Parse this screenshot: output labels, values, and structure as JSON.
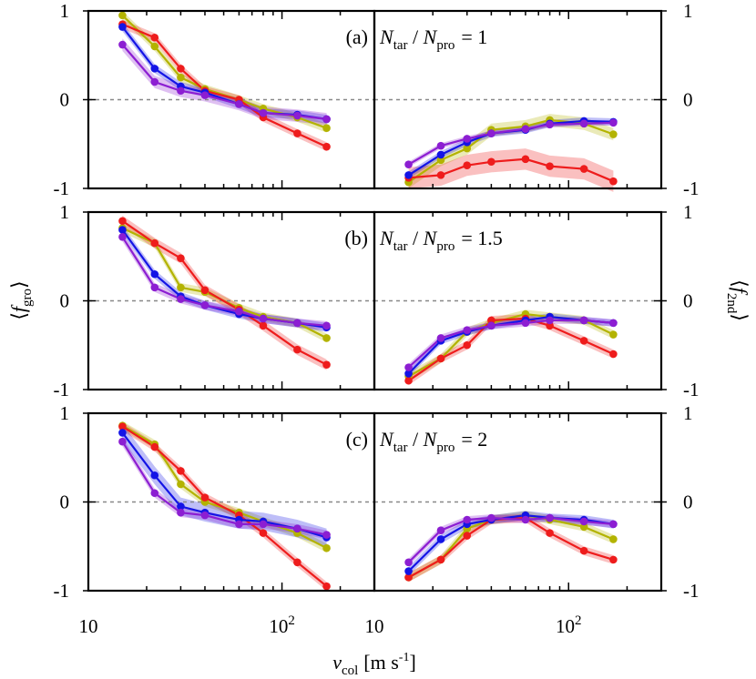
{
  "chart_data": {
    "type": "line",
    "xscale": "log",
    "xlim": [
      10,
      300
    ],
    "ylim": [
      -1,
      1
    ],
    "ylabel_left": {
      "var": "f",
      "sub": "gro"
    },
    "ylabel_right": {
      "var": "f",
      "sub": "2nd"
    },
    "xlabel": {
      "var": "v",
      "sub": "col",
      "unit": "[m s",
      "unit_exp": "-1",
      "unit_end": "]"
    },
    "x_tick_labels": [
      {
        "value": 10,
        "base": "10",
        "exp": ""
      },
      {
        "value": 100,
        "base": "10",
        "exp": "2"
      }
    ],
    "y_tick_labels": [
      {
        "value": 1,
        "label": "1"
      },
      {
        "value": 0,
        "label": "0"
      },
      {
        "value": -1,
        "label": "-1"
      }
    ],
    "colors": {
      "red": "#ee1c1c",
      "blue": "#1414e6",
      "yellow": "#b3b300",
      "purple": "#8c1ed2"
    },
    "x": [
      15,
      22,
      30,
      40,
      60,
      80,
      120,
      170
    ],
    "rows": [
      {
        "label": "(a)",
        "num": "N",
        "num_sub": "tar",
        "sep": " / ",
        "den": "N",
        "den_sub": "pro",
        "ratio": "= 1",
        "left": [
          {
            "name": "red",
            "values": [
              0.85,
              0.7,
              0.35,
              0.1,
              0.0,
              -0.2,
              -0.38,
              -0.53
            ],
            "band": 0.05
          },
          {
            "name": "blue",
            "values": [
              0.82,
              0.35,
              0.15,
              0.08,
              -0.05,
              -0.15,
              -0.17,
              -0.22
            ],
            "band": 0.05
          },
          {
            "name": "yellow",
            "values": [
              0.95,
              0.6,
              0.25,
              0.12,
              0.0,
              -0.1,
              -0.2,
              -0.32
            ],
            "band": 0.05
          },
          {
            "name": "purple",
            "values": [
              0.62,
              0.2,
              0.1,
              0.05,
              -0.05,
              -0.15,
              -0.18,
              -0.22
            ],
            "band": 0.07
          }
        ],
        "right": [
          {
            "name": "red",
            "values": [
              -0.88,
              -0.85,
              -0.74,
              -0.7,
              -0.67,
              -0.75,
              -0.78,
              -0.92
            ],
            "band": 0.12
          },
          {
            "name": "blue",
            "values": [
              -0.85,
              -0.62,
              -0.48,
              -0.38,
              -0.34,
              -0.27,
              -0.24,
              -0.25
            ],
            "band": 0.04
          },
          {
            "name": "yellow",
            "values": [
              -0.93,
              -0.68,
              -0.55,
              -0.34,
              -0.3,
              -0.23,
              -0.27,
              -0.39
            ],
            "band": 0.07
          },
          {
            "name": "purple",
            "values": [
              -0.73,
              -0.52,
              -0.44,
              -0.38,
              -0.33,
              -0.28,
              -0.27,
              -0.26
            ],
            "band": 0.03
          }
        ]
      },
      {
        "label": "(b)",
        "num": "N",
        "num_sub": "tar",
        "sep": " / ",
        "den": "N",
        "den_sub": "pro",
        "ratio": "= 1.5",
        "left": [
          {
            "name": "red",
            "values": [
              0.9,
              0.65,
              0.48,
              0.12,
              -0.1,
              -0.28,
              -0.55,
              -0.72
            ],
            "band": 0.06
          },
          {
            "name": "blue",
            "values": [
              0.8,
              0.3,
              0.05,
              -0.05,
              -0.15,
              -0.2,
              -0.25,
              -0.3
            ],
            "band": 0.05
          },
          {
            "name": "yellow",
            "values": [
              0.82,
              0.65,
              0.15,
              0.1,
              -0.08,
              -0.18,
              -0.25,
              -0.42
            ],
            "band": 0.05
          },
          {
            "name": "purple",
            "values": [
              0.72,
              0.15,
              0.02,
              -0.05,
              -0.12,
              -0.2,
              -0.25,
              -0.28
            ],
            "band": 0.05
          }
        ],
        "right": [
          {
            "name": "red",
            "values": [
              -0.9,
              -0.65,
              -0.5,
              -0.22,
              -0.2,
              -0.28,
              -0.45,
              -0.6
            ],
            "band": 0.05
          },
          {
            "name": "blue",
            "values": [
              -0.82,
              -0.45,
              -0.35,
              -0.28,
              -0.22,
              -0.18,
              -0.22,
              -0.25
            ],
            "band": 0.04
          },
          {
            "name": "yellow",
            "values": [
              -0.85,
              -0.65,
              -0.35,
              -0.25,
              -0.15,
              -0.18,
              -0.22,
              -0.38
            ],
            "band": 0.05
          },
          {
            "name": "purple",
            "values": [
              -0.75,
              -0.42,
              -0.33,
              -0.28,
              -0.25,
              -0.22,
              -0.22,
              -0.25
            ],
            "band": 0.04
          }
        ]
      },
      {
        "label": "(c)",
        "num": "N",
        "num_sub": "tar",
        "sep": " / ",
        "den": "N",
        "den_sub": "pro",
        "ratio": "= 2",
        "left": [
          {
            "name": "red",
            "values": [
              0.85,
              0.62,
              0.35,
              0.05,
              -0.15,
              -0.35,
              -0.68,
              -0.95
            ],
            "band": 0.05
          },
          {
            "name": "blue",
            "values": [
              0.78,
              0.3,
              -0.05,
              -0.12,
              -0.2,
              -0.22,
              -0.3,
              -0.4
            ],
            "band": 0.1
          },
          {
            "name": "yellow",
            "values": [
              0.86,
              0.65,
              0.2,
              0.0,
              -0.12,
              -0.22,
              -0.35,
              -0.52
            ],
            "band": 0.05
          },
          {
            "name": "purple",
            "values": [
              0.68,
              0.1,
              -0.12,
              -0.15,
              -0.25,
              -0.25,
              -0.3,
              -0.37
            ],
            "band": 0.05
          }
        ],
        "right": [
          {
            "name": "red",
            "values": [
              -0.85,
              -0.65,
              -0.38,
              -0.2,
              -0.18,
              -0.35,
              -0.55,
              -0.65
            ],
            "band": 0.05
          },
          {
            "name": "blue",
            "values": [
              -0.78,
              -0.42,
              -0.25,
              -0.2,
              -0.15,
              -0.18,
              -0.2,
              -0.25
            ],
            "band": 0.05
          },
          {
            "name": "yellow",
            "values": [
              -0.85,
              -0.65,
              -0.3,
              -0.2,
              -0.15,
              -0.2,
              -0.28,
              -0.42
            ],
            "band": 0.05
          },
          {
            "name": "purple",
            "values": [
              -0.68,
              -0.32,
              -0.2,
              -0.18,
              -0.2,
              -0.18,
              -0.22,
              -0.25
            ],
            "band": 0.04
          }
        ]
      }
    ]
  }
}
